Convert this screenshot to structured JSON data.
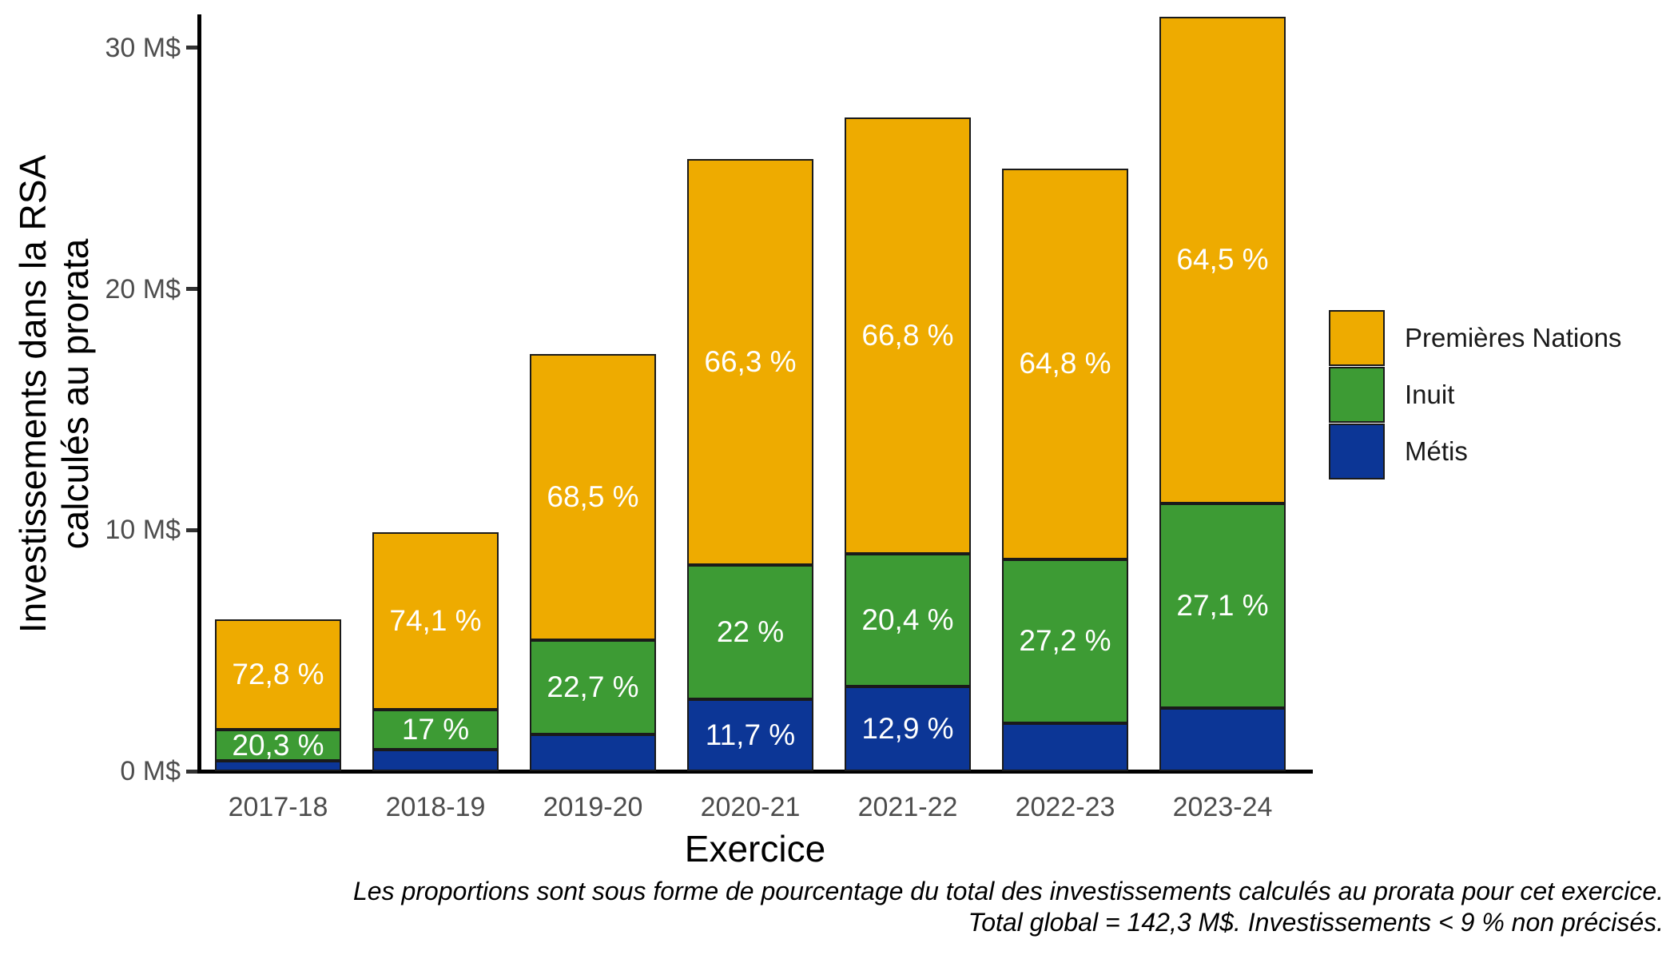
{
  "chart_data": {
    "type": "bar",
    "stacked": true,
    "title": "",
    "xlabel": "Exercice",
    "ylabel_line1": "Investissements dans la RSA",
    "ylabel_line2": "calculés au prorata",
    "unit": "M$",
    "categories": [
      "2017-18",
      "2018-19",
      "2019-20",
      "2020-21",
      "2021-22",
      "2022-23",
      "2023-24"
    ],
    "ylim": [
      0,
      31.5
    ],
    "grid": false,
    "y_ticks": [
      {
        "value": 0,
        "label": "0 M$"
      },
      {
        "value": 10,
        "label": "10 M$"
      },
      {
        "value": 20,
        "label": "20 M$"
      },
      {
        "value": 30,
        "label": "30 M$"
      }
    ],
    "totals_msd": [
      6.3,
      9.9,
      17.3,
      25.4,
      27.1,
      25.0,
      31.3
    ],
    "series": [
      {
        "name": "Métis",
        "color": "#0C3696",
        "values": [
          0.43,
          0.88,
          1.52,
          2.97,
          3.5,
          2.0,
          2.63
        ],
        "labels": [
          "",
          "",
          "",
          "11,7 %",
          "12,9 %",
          "",
          ""
        ]
      },
      {
        "name": "Inuit",
        "color": "#3D9B34",
        "values": [
          1.28,
          1.68,
          3.93,
          5.59,
          5.53,
          6.8,
          8.48
        ],
        "labels": [
          "20,3 %",
          "17 %",
          "22,7 %",
          "22 %",
          "20,4 %",
          "27,2 %",
          "27,1 %"
        ]
      },
      {
        "name": "Premières Nations",
        "color": "#EEAB00",
        "values": [
          4.59,
          7.34,
          11.85,
          16.84,
          18.1,
          16.2,
          20.19
        ],
        "labels": [
          "72,8 %",
          "74,1 %",
          "68,5 %",
          "66,3 %",
          "66,8 %",
          "64,8 %",
          "64,5 %"
        ]
      }
    ],
    "legend": {
      "position": "right",
      "items": [
        {
          "label": "Premières Nations",
          "color": "#EEAB00"
        },
        {
          "label": "Inuit",
          "color": "#3D9B34"
        },
        {
          "label": "Métis",
          "color": "#0C3696"
        }
      ]
    },
    "caption_line1": "Les proportions sont sous forme de pourcentage du total des investissements calculés au prorata pour cet exercice.",
    "caption_line2": "Total global = 142,3 M$. Investissements < 9 % non précisés.",
    "colors": {
      "axis": "#000000",
      "tick_text": "#4D4D4D",
      "bar_border": "#1A1A1A",
      "bar_label_text": "#FFFFFF"
    }
  }
}
